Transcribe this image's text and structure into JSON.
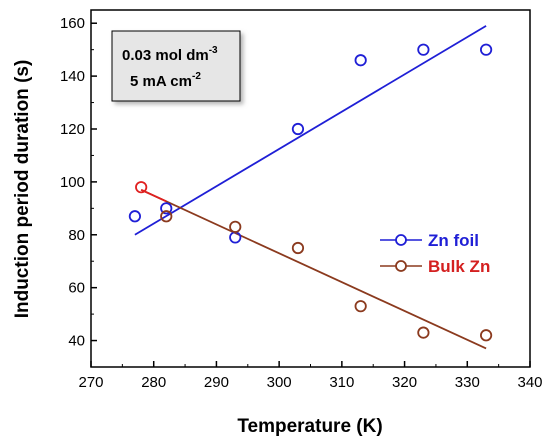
{
  "chart_data": {
    "type": "scatter",
    "xlabel": "Temperature (K)",
    "ylabel": "Induction period duration (s)",
    "xlim": [
      270,
      340
    ],
    "ylim": [
      30,
      165
    ],
    "xticks": [
      270,
      280,
      290,
      300,
      310,
      320,
      330,
      340
    ],
    "yticks": [
      40,
      60,
      80,
      100,
      120,
      140,
      160
    ],
    "grid": false,
    "legend_position": "center-right",
    "annotation": {
      "line1": "0.03 mol dm",
      "line1_sup": "-3",
      "line2": "5 mA cm",
      "line2_sup": "-2"
    },
    "series": [
      {
        "name": "Zn foil",
        "color": "#1f1fd6",
        "marker_color": "#1f1fd6",
        "x": [
          277,
          282,
          293,
          303,
          313,
          323,
          333
        ],
        "y": [
          87,
          90,
          79,
          120,
          146,
          150,
          150
        ],
        "fit": {
          "x": [
            277,
            333
          ],
          "y": [
            80,
            159
          ]
        }
      },
      {
        "name": "Bulk Zn",
        "color": "#8b3a1e",
        "legend_text_color": "#d42020",
        "marker_color": "#8b3a1e",
        "first_marker_color": "#e02020",
        "x": [
          278,
          282,
          293,
          303,
          313,
          323,
          333
        ],
        "y": [
          98,
          87,
          83,
          75,
          53,
          43,
          42
        ],
        "fit": {
          "x": [
            278,
            333
          ],
          "y": [
            97,
            37
          ]
        },
        "fit_start_color": "#e02020"
      }
    ]
  }
}
